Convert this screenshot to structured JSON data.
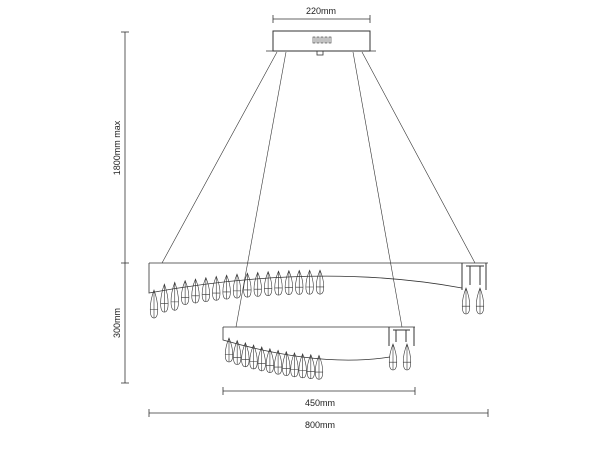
{
  "dimensions": {
    "canopy_width": "220mm",
    "total_height": "1800mm max",
    "tier_height": "300mm",
    "lower_ring_width": "450mm",
    "upper_ring_width": "800mm"
  },
  "upper_ring": {
    "drops": 17
  },
  "lower_ring": {
    "drops": 12
  },
  "line_color": "#333333"
}
